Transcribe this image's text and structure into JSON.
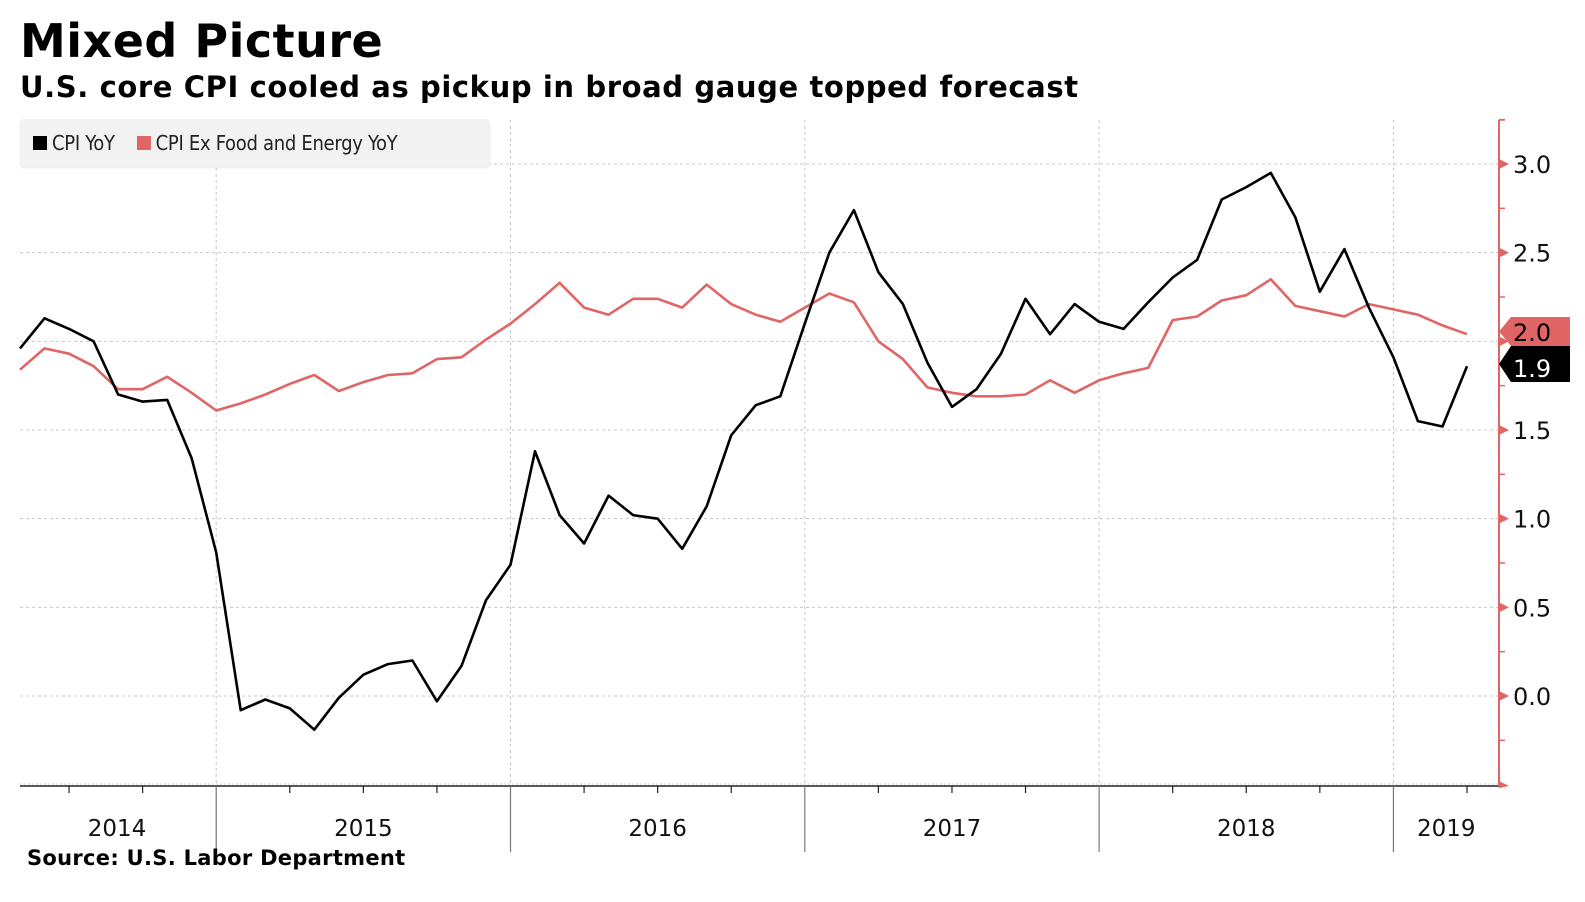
{
  "header": {
    "title": "Mixed Picture",
    "subtitle": "U.S. core CPI cooled as pickup in broad gauge topped forecast"
  },
  "legend": [
    {
      "label": "CPI YoY",
      "color": "#000000"
    },
    {
      "label": "CPI Ex Food and Energy YoY",
      "color": "#e06666"
    }
  ],
  "footer": {
    "source": "Source: U.S. Labor Department"
  },
  "chart_data": {
    "type": "line",
    "title": "Mixed Picture",
    "subtitle": "U.S. core CPI cooled as pickup in broad gauge topped forecast",
    "xlabel": "",
    "ylabel": "",
    "x_start": "2014-04",
    "x_end": "2019-03",
    "x_frequency": "monthly",
    "x_tick_labels": [
      "2014",
      "2015",
      "2016",
      "2017",
      "2018",
      "2019"
    ],
    "y_tick_labels": [
      "0.0",
      "0.5",
      "1.0",
      "1.5",
      "2.0",
      "2.5",
      "3.0"
    ],
    "y_ticks": [
      0.0,
      0.5,
      1.0,
      1.5,
      2.0,
      2.5,
      3.0
    ],
    "ylim": [
      -0.5,
      3.25
    ],
    "y_axis_side": "right",
    "grid": true,
    "legend_position": "top-left",
    "series": [
      {
        "name": "CPI YoY",
        "color": "#000000",
        "last_value_label": "1.9",
        "values": [
          1.96,
          2.13,
          2.07,
          2.0,
          1.7,
          1.66,
          1.67,
          1.34,
          0.81,
          -0.08,
          -0.02,
          -0.07,
          -0.19,
          -0.01,
          0.12,
          0.18,
          0.2,
          -0.03,
          0.17,
          0.54,
          0.74,
          1.38,
          1.02,
          0.86,
          1.13,
          1.02,
          1.0,
          0.83,
          1.07,
          1.47,
          1.64,
          1.69,
          2.1,
          2.5,
          2.74,
          2.39,
          2.21,
          1.88,
          1.63,
          1.73,
          1.93,
          2.24,
          2.04,
          2.21,
          2.11,
          2.07,
          2.22,
          2.36,
          2.46,
          2.8,
          2.87,
          2.95,
          2.7,
          2.28,
          2.52,
          2.19,
          1.91,
          1.55,
          1.52,
          1.86
        ]
      },
      {
        "name": "CPI Ex Food and Energy YoY",
        "color": "#e06666",
        "last_value_label": "2.0",
        "values": [
          1.84,
          1.96,
          1.93,
          1.86,
          1.73,
          1.73,
          1.8,
          1.71,
          1.61,
          1.65,
          1.7,
          1.76,
          1.81,
          1.72,
          1.77,
          1.81,
          1.82,
          1.9,
          1.91,
          2.01,
          2.1,
          2.21,
          2.33,
          2.19,
          2.15,
          2.24,
          2.24,
          2.19,
          2.32,
          2.21,
          2.15,
          2.11,
          2.19,
          2.27,
          2.22,
          2.0,
          1.9,
          1.74,
          1.71,
          1.69,
          1.69,
          1.7,
          1.78,
          1.71,
          1.78,
          1.82,
          1.85,
          2.12,
          2.14,
          2.23,
          2.26,
          2.35,
          2.2,
          2.17,
          2.14,
          2.21,
          2.18,
          2.15,
          2.09,
          2.04
        ]
      }
    ]
  }
}
